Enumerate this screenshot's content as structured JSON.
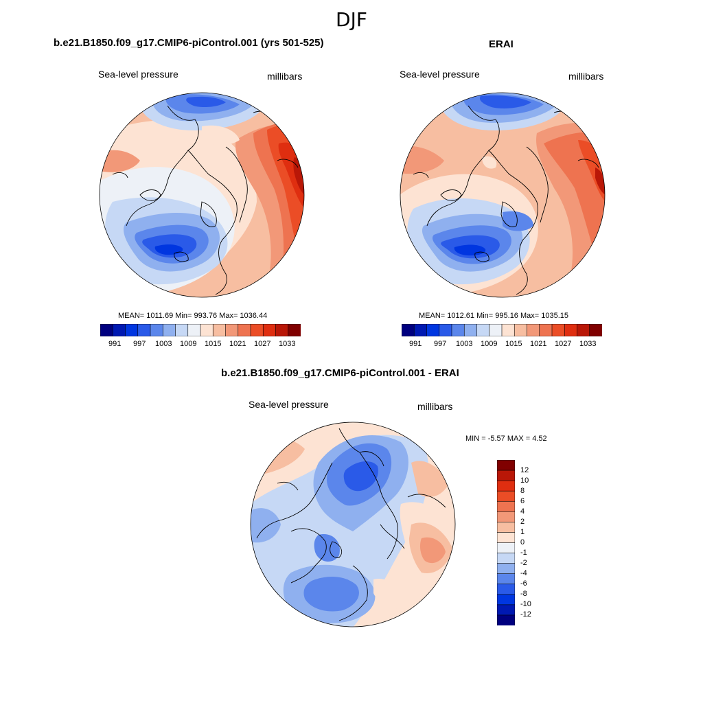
{
  "title": "DJF",
  "palette_full": [
    "#00007f",
    "#0019b2",
    "#0036e0",
    "#2a5ae8",
    "#5b86eb",
    "#8fb0ef",
    "#c6d8f5",
    "#edf1f7",
    "#fde3d3",
    "#f7bea1",
    "#f29878",
    "#ee7350",
    "#eb4d26",
    "#df2e10",
    "#b91707",
    "#800000"
  ],
  "palette_diff": [
    "#00007f",
    "#0019b2",
    "#0036e0",
    "#2a5ae8",
    "#5b86eb",
    "#8fb0ef",
    "#c6d8f5",
    "#edf1f7",
    "#fde3d3",
    "#f7bea1",
    "#f29878",
    "#ee7350",
    "#eb4d26",
    "#df2e10",
    "#b91707",
    "#800000"
  ],
  "coast_color": "#000000",
  "panels": {
    "model": {
      "title": "b.e21.B1850.f09_g17.CMIP6-piControl.001 (yrs 501-525)",
      "variable": "Sea-level pressure",
      "units": "millibars",
      "stats": "MEAN= 1011.69  Min= 993.76  Max= 1036.44",
      "colorbar_labels": [
        "991",
        "997",
        "1003",
        "1009",
        "1015",
        "1021",
        "1027",
        "1033"
      ]
    },
    "obs": {
      "title": "ERAI",
      "variable": "Sea-level pressure",
      "units": "millibars",
      "stats": "MEAN= 1012.61  Min= 995.16  Max= 1035.15",
      "colorbar_labels": [
        "991",
        "997",
        "1003",
        "1009",
        "1015",
        "1021",
        "1027",
        "1033"
      ]
    },
    "diff": {
      "title": "b.e21.B1850.f09_g17.CMIP6-piControl.001 - ERAI",
      "variable": "Sea-level pressure",
      "units": "millibars",
      "stats": "MIN =  -5.57 MAX =   4.52",
      "colorbar_labels": [
        "12",
        "10",
        "8",
        "6",
        "4",
        "2",
        "1",
        "0",
        "-1",
        "-2",
        "-4",
        "-6",
        "-8",
        "-10",
        "-12"
      ]
    }
  }
}
